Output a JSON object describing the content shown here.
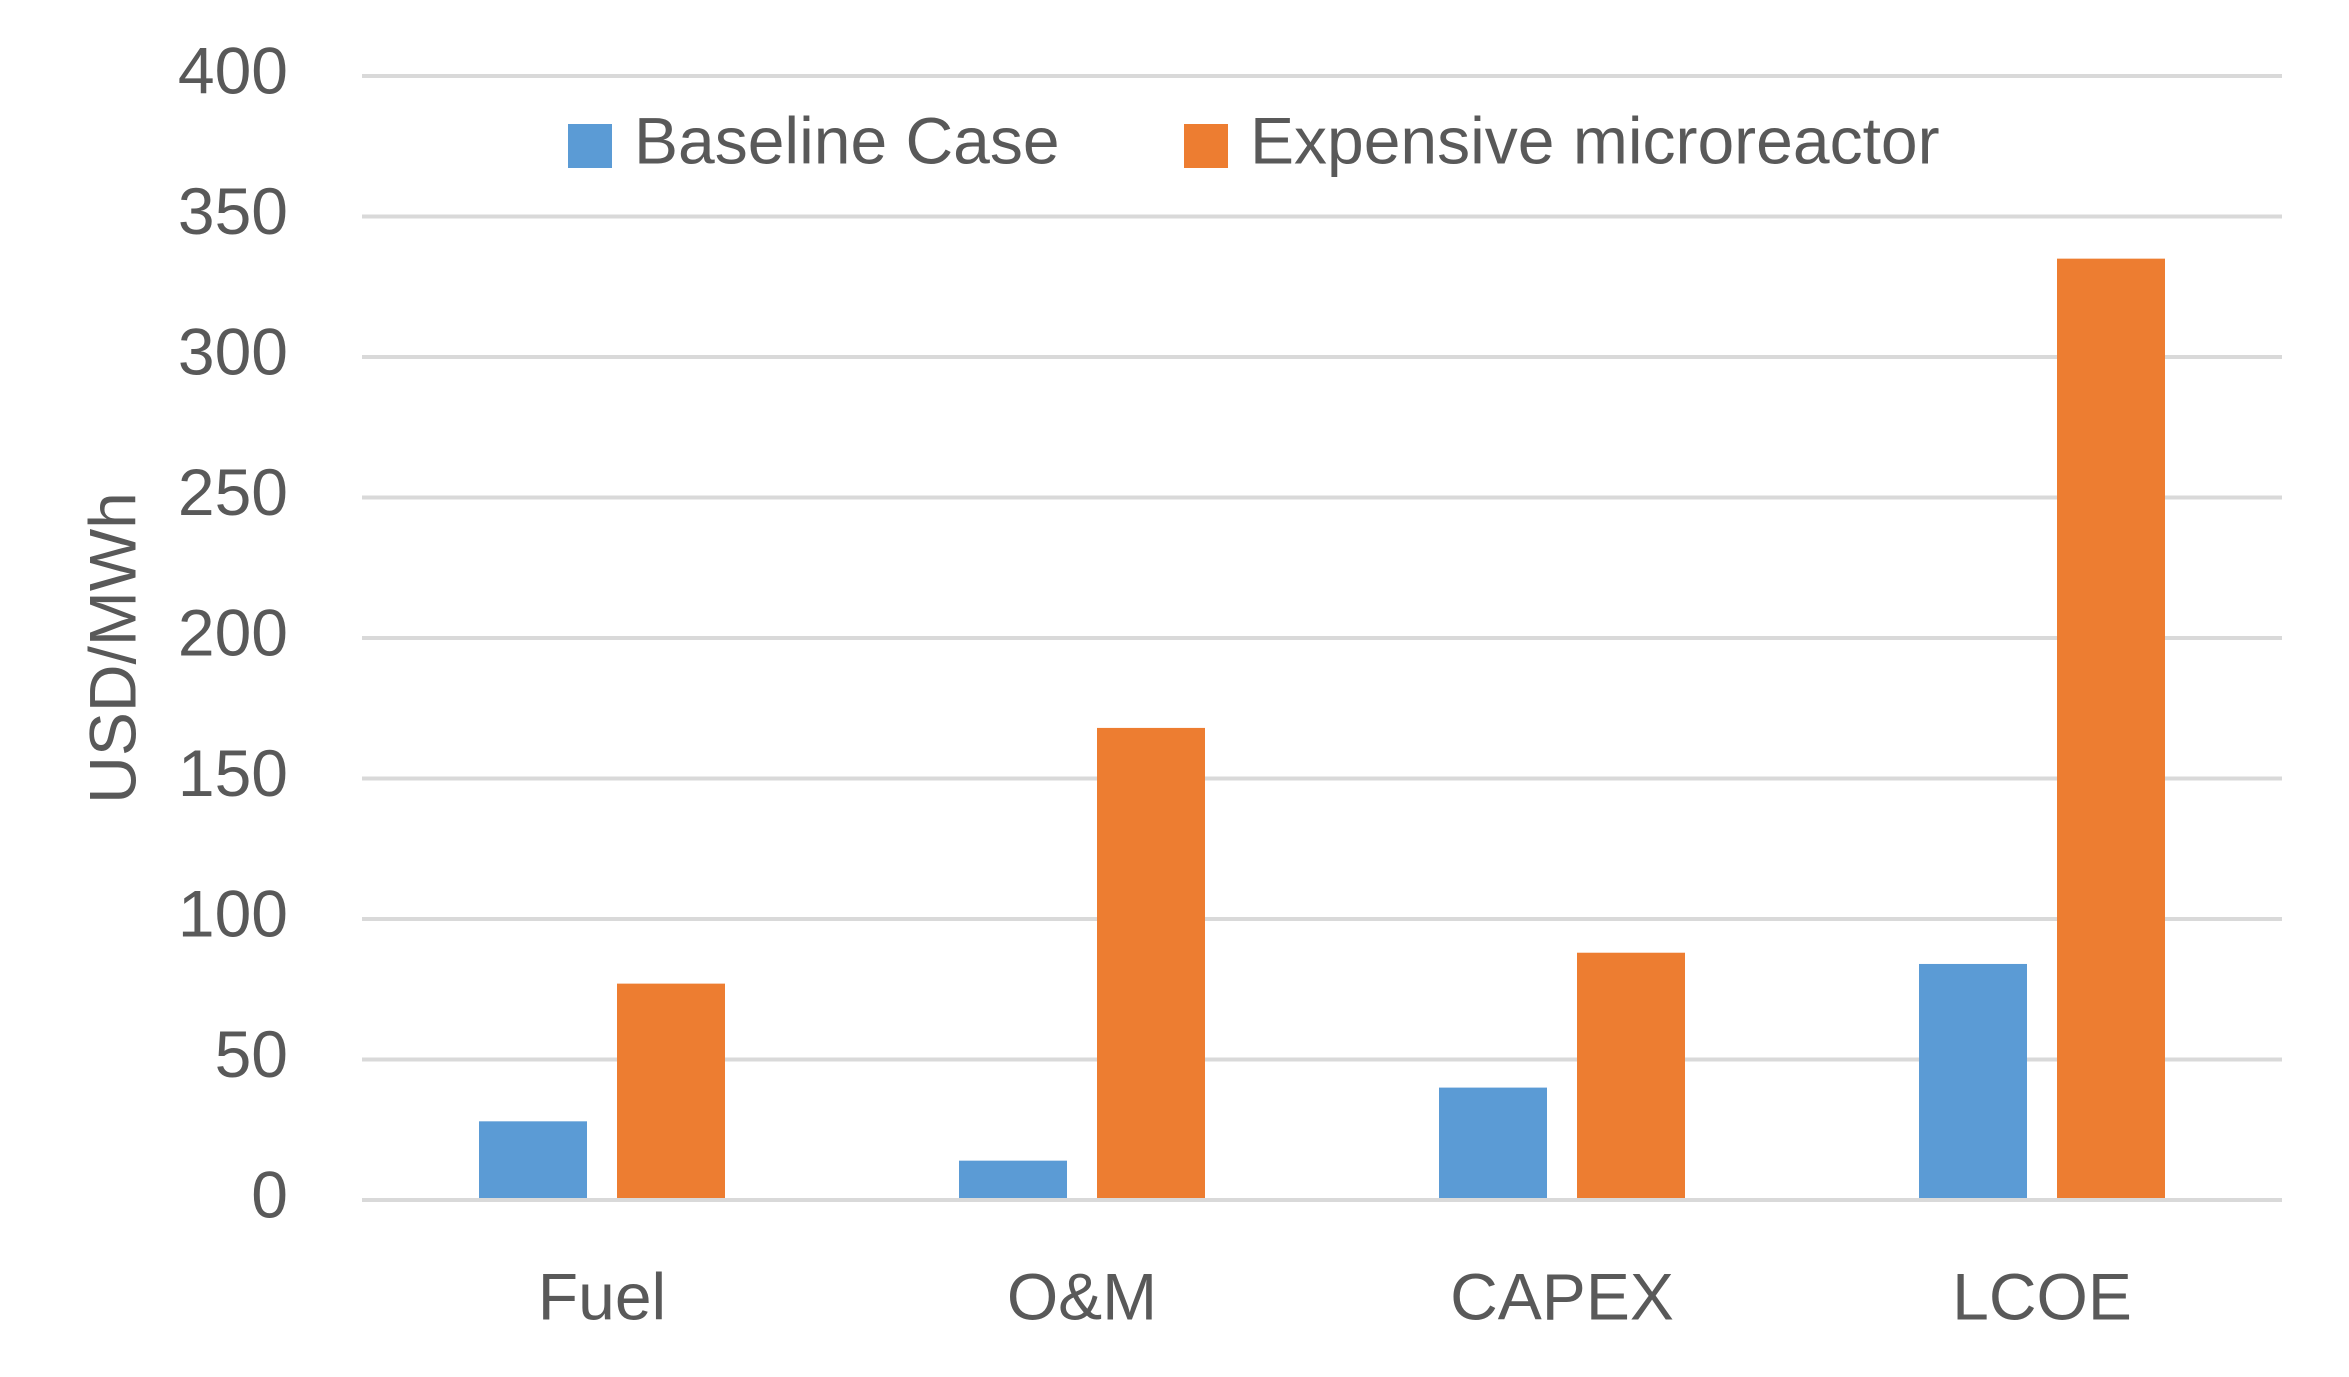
{
  "chart_data": {
    "type": "bar",
    "title": "",
    "xlabel": "",
    "ylabel": "USD/MWh",
    "ylim": [
      0,
      400
    ],
    "yticks": [
      0,
      50,
      100,
      150,
      200,
      250,
      300,
      350,
      400
    ],
    "grid": true,
    "legend_position": "top",
    "categories": [
      "Fuel",
      "O&M",
      "CAPEX",
      "LCOE"
    ],
    "series": [
      {
        "name": "Baseline Case",
        "color": "#5B9BD5",
        "values": [
          28,
          14,
          40,
          84
        ]
      },
      {
        "name": "Expensive microreactor",
        "color": "#ED7D31",
        "values": [
          77,
          168,
          88,
          335
        ]
      }
    ]
  }
}
